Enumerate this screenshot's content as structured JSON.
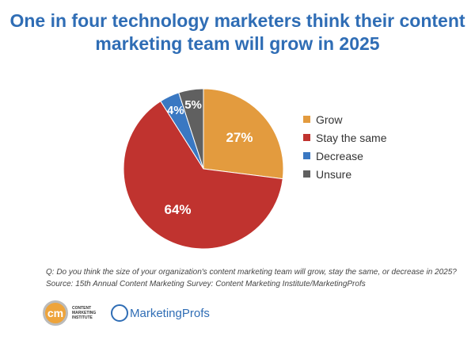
{
  "chart_data": {
    "type": "pie",
    "title": "One in four technology marketers think their content marketing team will grow in 2025",
    "slices": [
      {
        "label": "Grow",
        "value": 27,
        "data_label": "27%",
        "color": "#e39b3e"
      },
      {
        "label": "Stay the same",
        "value": 64,
        "data_label": "64%",
        "color": "#c0332f"
      },
      {
        "label": "Decrease",
        "value": 4,
        "data_label": "4%",
        "color": "#3a78c2"
      },
      {
        "label": "Unsure",
        "value": 5,
        "data_label": "5%",
        "color": "#606060"
      }
    ],
    "legend_position": "right",
    "start": "top, clockwise"
  },
  "footnote": {
    "question": "Q: Do you think the size of your organization's content marketing team will grow, stay the same, or decrease in 2025?",
    "source": "Source: 15th Annual Content Marketing Survey: Content Marketing Institute/MarketingProfs"
  },
  "logos": {
    "cmi_mark": "cm",
    "cmi_text": "CONTENT MARKETING INSTITUTE",
    "mp_text": "MarketingProfs"
  }
}
